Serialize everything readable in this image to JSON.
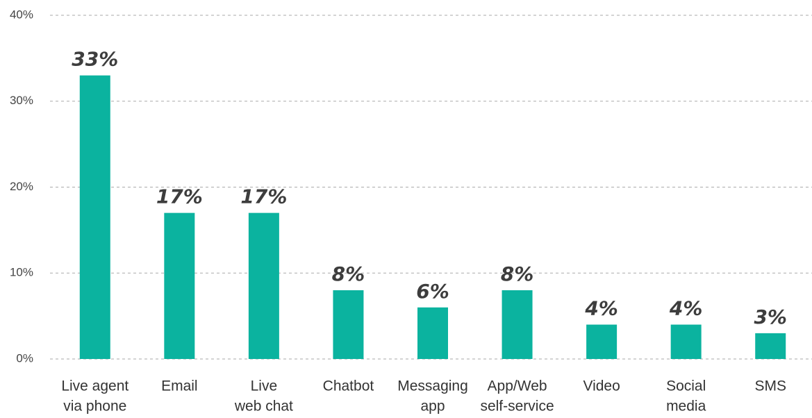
{
  "chart_data": {
    "type": "bar",
    "categories": [
      [
        "Live agent",
        "via phone"
      ],
      [
        "Email"
      ],
      [
        "Live",
        "web chat"
      ],
      [
        "Chatbot"
      ],
      [
        "Messaging",
        "app"
      ],
      [
        "App/Web",
        "self-service"
      ],
      [
        "Video"
      ],
      [
        "Social",
        "media"
      ],
      [
        "SMS"
      ]
    ],
    "values": [
      33,
      17,
      17,
      8,
      6,
      8,
      4,
      4,
      3
    ],
    "value_labels": [
      "33%",
      "17%",
      "17%",
      "8%",
      "6%",
      "8%",
      "4%",
      "4%",
      "3%"
    ],
    "color": "#0bb39f",
    "ylim": [
      0,
      40
    ],
    "yticks": [
      {
        "value": 0,
        "label": "0%"
      },
      {
        "value": 10,
        "label": "10%"
      },
      {
        "value": 20,
        "label": "20%"
      },
      {
        "value": 30,
        "label": "30%"
      },
      {
        "value": 40,
        "label": "40%"
      }
    ],
    "grid": true
  }
}
